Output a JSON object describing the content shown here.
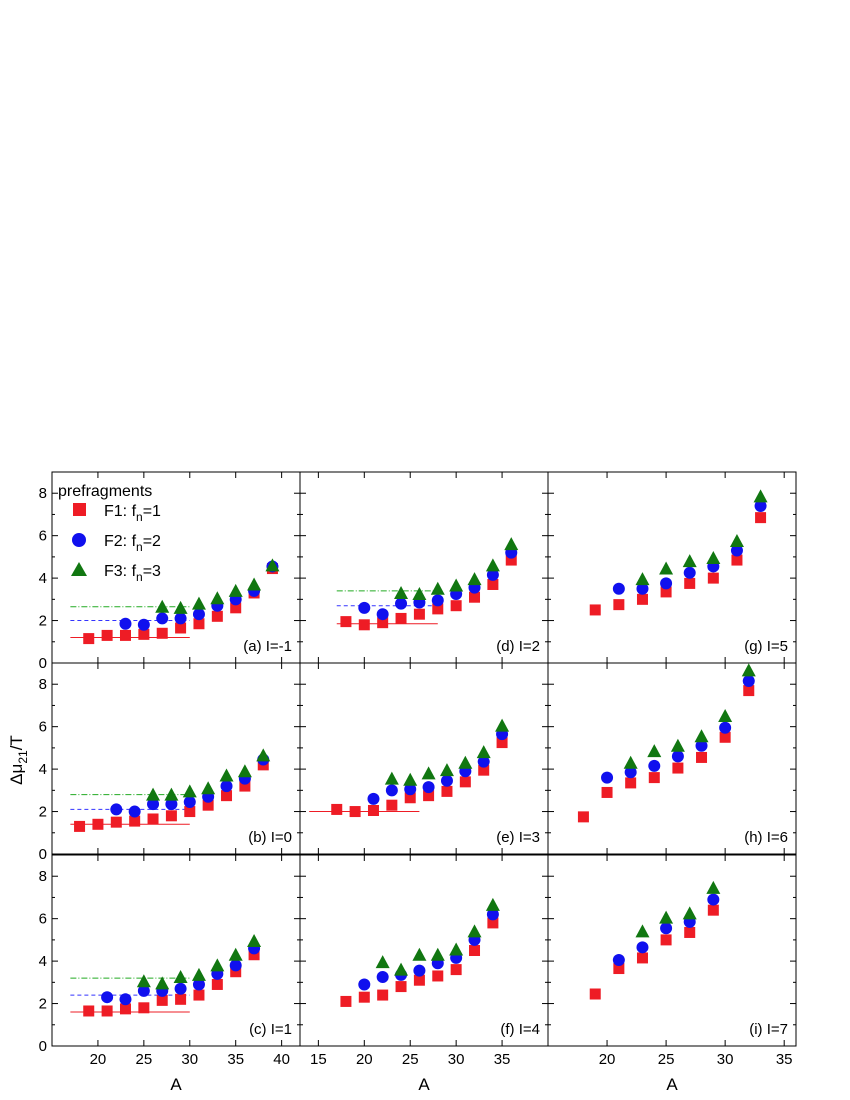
{
  "figure": {
    "ylabel_main": "Δμ",
    "ylabel_sub": "21",
    "ylabel_tail": "/T",
    "xlabel": "A",
    "legend": {
      "title": "prefragments",
      "entries": [
        {
          "prefix": "F1: f",
          "sub": "n",
          "suffix": "=1"
        },
        {
          "prefix": "F2: f",
          "sub": "n",
          "suffix": "=2"
        },
        {
          "prefix": "F3: f",
          "sub": "n",
          "suffix": "=3"
        }
      ]
    },
    "colors": {
      "F1": "#ee1c25",
      "F2": "#1010ee",
      "F3": "#117711",
      "line_F1": "#ee1c25",
      "line_F2": "#3333ff",
      "line_F3": "#22aa22"
    },
    "columns": [
      {
        "xlim": [
          15,
          42
        ],
        "xticks": [
          "20",
          "25",
          "30",
          "35",
          "40"
        ]
      },
      {
        "xlim": [
          13,
          40
        ],
        "xticks": [
          "15",
          "20",
          "25",
          "30",
          "35"
        ]
      },
      {
        "xlim": [
          15,
          36
        ],
        "xticks": [
          "20",
          "25",
          "30",
          "35"
        ]
      }
    ],
    "rows": [
      {
        "ylim": [
          0,
          9
        ],
        "yticks": [
          "0",
          "2",
          "4",
          "6",
          "8"
        ]
      },
      {
        "ylim": [
          0,
          9
        ],
        "yticks": [
          "0",
          "2",
          "4",
          "6",
          "8"
        ]
      },
      {
        "ylim": [
          0,
          9
        ],
        "yticks": [
          "0",
          "2",
          "4",
          "6",
          "8"
        ]
      }
    ]
  },
  "chart_data": [
    {
      "panel": "(a) I=-1",
      "type": "scatter",
      "x": [
        19,
        21,
        23,
        25,
        27,
        29,
        31,
        33,
        35,
        37,
        39
      ],
      "series": [
        {
          "name": "F1: fn=1",
          "x": [
            19,
            21,
            23,
            25,
            27,
            29,
            31,
            33,
            35,
            37,
            39
          ],
          "values": [
            1.15,
            1.3,
            1.3,
            1.35,
            1.4,
            1.65,
            1.85,
            2.2,
            2.6,
            3.3,
            4.45
          ]
        },
        {
          "name": "F2: fn=2",
          "x": [
            23,
            25,
            27,
            29,
            31,
            33,
            35,
            37,
            39
          ],
          "values": [
            1.85,
            1.8,
            2.1,
            2.1,
            2.3,
            2.7,
            3.0,
            3.4,
            4.55
          ]
        },
        {
          "name": "F3: fn=3",
          "x": [
            27,
            29,
            31,
            33,
            35,
            37,
            39
          ],
          "values": [
            2.65,
            2.6,
            2.8,
            3.05,
            3.4,
            3.7,
            4.6
          ]
        }
      ],
      "ref_lines": {
        "F1": {
          "y": 1.2,
          "x": [
            17,
            30
          ]
        },
        "F2": {
          "y": 2.0,
          "x": [
            17,
            30
          ]
        },
        "F3": {
          "y": 2.65,
          "x": [
            17,
            30
          ]
        }
      }
    },
    {
      "panel": "(b) I=0",
      "type": "scatter",
      "series": [
        {
          "name": "F1: fn=1",
          "x": [
            18,
            20,
            22,
            24,
            26,
            28,
            30,
            32,
            34,
            36,
            38
          ],
          "values": [
            1.3,
            1.4,
            1.5,
            1.55,
            1.65,
            1.8,
            2.0,
            2.3,
            2.75,
            3.2,
            4.2
          ]
        },
        {
          "name": "F2: fn=2",
          "x": [
            22,
            24,
            26,
            28,
            30,
            32,
            34,
            36,
            38
          ],
          "values": [
            2.1,
            2.0,
            2.35,
            2.35,
            2.45,
            2.7,
            3.2,
            3.55,
            4.45
          ]
        },
        {
          "name": "F3: fn=3",
          "x": [
            26,
            28,
            30,
            32,
            34,
            36,
            38
          ],
          "values": [
            2.8,
            2.8,
            2.95,
            3.1,
            3.7,
            3.9,
            4.65
          ]
        }
      ],
      "ref_lines": {
        "F1": {
          "y": 1.4,
          "x": [
            17,
            30
          ]
        },
        "F2": {
          "y": 2.1,
          "x": [
            17,
            30
          ]
        },
        "F3": {
          "y": 2.8,
          "x": [
            17,
            30
          ]
        }
      }
    },
    {
      "panel": "(c) I=1",
      "type": "scatter",
      "series": [
        {
          "name": "F1: fn=1",
          "x": [
            19,
            21,
            23,
            25,
            27,
            29,
            31,
            33,
            35,
            37
          ],
          "values": [
            1.65,
            1.65,
            1.75,
            1.8,
            2.15,
            2.2,
            2.4,
            2.9,
            3.5,
            4.3
          ]
        },
        {
          "name": "F2: fn=2",
          "x": [
            21,
            23,
            25,
            27,
            29,
            31,
            33,
            35,
            37
          ],
          "values": [
            2.3,
            2.2,
            2.6,
            2.6,
            2.7,
            2.9,
            3.4,
            3.8,
            4.6
          ]
        },
        {
          "name": "F3: fn=3",
          "x": [
            25,
            27,
            29,
            31,
            33,
            35,
            37
          ],
          "values": [
            3.05,
            2.95,
            3.25,
            3.35,
            3.8,
            4.3,
            4.95
          ]
        }
      ],
      "ref_lines": {
        "F1": {
          "y": 1.6,
          "x": [
            17,
            30
          ]
        },
        "F2": {
          "y": 2.4,
          "x": [
            17,
            30
          ]
        },
        "F3": {
          "y": 3.2,
          "x": [
            17,
            30
          ]
        }
      }
    },
    {
      "panel": "(d) I=2",
      "type": "scatter",
      "series": [
        {
          "name": "F1: fn=1",
          "x": [
            18,
            20,
            22,
            24,
            26,
            28,
            30,
            32,
            34,
            36
          ],
          "values": [
            1.95,
            1.8,
            1.9,
            2.1,
            2.3,
            2.55,
            2.7,
            3.1,
            3.7,
            4.85
          ]
        },
        {
          "name": "F2: fn=2",
          "x": [
            20,
            22,
            24,
            26,
            28,
            30,
            32,
            34,
            36
          ],
          "values": [
            2.6,
            2.3,
            2.8,
            2.85,
            2.95,
            3.25,
            3.55,
            4.15,
            5.2
          ]
        },
        {
          "name": "F3: fn=3",
          "x": [
            24,
            26,
            28,
            30,
            32,
            34,
            36
          ],
          "values": [
            3.3,
            3.25,
            3.5,
            3.65,
            3.95,
            4.6,
            5.6
          ]
        }
      ],
      "ref_lines": {
        "F1": {
          "y": 1.85,
          "x": [
            17,
            28
          ]
        },
        "F2": {
          "y": 2.7,
          "x": [
            17,
            28
          ]
        },
        "F3": {
          "y": 3.4,
          "x": [
            17,
            28
          ]
        }
      }
    },
    {
      "panel": "(e) I=3",
      "type": "scatter",
      "series": [
        {
          "name": "F1: fn=1",
          "x": [
            17,
            19,
            21,
            23,
            25,
            27,
            29,
            31,
            33,
            35
          ],
          "values": [
            2.1,
            2.0,
            2.05,
            2.3,
            2.65,
            2.75,
            2.95,
            3.4,
            3.95,
            5.25
          ]
        },
        {
          "name": "F2: fn=2",
          "x": [
            21,
            23,
            25,
            27,
            29,
            31,
            33,
            35
          ],
          "values": [
            2.6,
            3.0,
            3.05,
            3.15,
            3.45,
            3.9,
            4.35,
            5.65
          ]
        },
        {
          "name": "F3: fn=3",
          "x": [
            23,
            25,
            27,
            29,
            31,
            33,
            35
          ],
          "values": [
            3.55,
            3.5,
            3.8,
            3.95,
            4.3,
            4.8,
            6.05
          ]
        }
      ],
      "ref_lines": {
        "F1": {
          "y": 2.0,
          "x": [
            14,
            26
          ]
        }
      }
    },
    {
      "panel": "(f) I=4",
      "type": "scatter",
      "series": [
        {
          "name": "F1: fn=1",
          "x": [
            18,
            20,
            22,
            24,
            26,
            28,
            30,
            32,
            34
          ],
          "values": [
            2.1,
            2.3,
            2.4,
            2.8,
            3.1,
            3.3,
            3.6,
            4.5,
            5.8
          ]
        },
        {
          "name": "F2: fn=2",
          "x": [
            20,
            22,
            24,
            26,
            28,
            30,
            32,
            34
          ],
          "values": [
            2.9,
            3.25,
            3.35,
            3.55,
            3.9,
            4.15,
            5.0,
            6.2
          ]
        },
        {
          "name": "F3: fn=3",
          "x": [
            22,
            24,
            26,
            28,
            30,
            32,
            34
          ],
          "values": [
            3.95,
            3.6,
            4.3,
            4.3,
            4.55,
            5.4,
            6.65
          ]
        }
      ]
    },
    {
      "panel": "(g) I=5",
      "type": "scatter",
      "series": [
        {
          "name": "F1: fn=1",
          "x": [
            19,
            21,
            23,
            25,
            27,
            29,
            31,
            33
          ],
          "values": [
            2.5,
            2.75,
            3.0,
            3.35,
            3.75,
            4.0,
            4.85,
            6.85
          ]
        },
        {
          "name": "F2: fn=2",
          "x": [
            21,
            23,
            25,
            27,
            29,
            31,
            33
          ],
          "values": [
            3.5,
            3.5,
            3.75,
            4.25,
            4.55,
            5.3,
            7.4
          ]
        },
        {
          "name": "F3: fn=3",
          "x": [
            23,
            25,
            27,
            29,
            31,
            33
          ],
          "values": [
            3.95,
            4.45,
            4.8,
            4.95,
            5.75,
            7.85
          ]
        }
      ]
    },
    {
      "panel": "(h) I=6",
      "type": "scatter",
      "series": [
        {
          "name": "F1: fn=1",
          "x": [
            18,
            20,
            22,
            24,
            26,
            28,
            30,
            32
          ],
          "values": [
            1.75,
            2.9,
            3.35,
            3.6,
            4.05,
            4.55,
            5.5,
            7.7
          ]
        },
        {
          "name": "F2: fn=2",
          "x": [
            20,
            22,
            24,
            26,
            28,
            30,
            32
          ],
          "values": [
            3.6,
            3.85,
            4.15,
            4.6,
            5.1,
            5.95,
            8.15
          ]
        },
        {
          "name": "F3: fn=3",
          "x": [
            22,
            24,
            26,
            28,
            30,
            32
          ],
          "values": [
            4.3,
            4.85,
            5.1,
            5.55,
            6.5,
            8.65
          ]
        }
      ]
    },
    {
      "panel": "(i) I=7",
      "type": "scatter",
      "series": [
        {
          "name": "F1: fn=1",
          "x": [
            19,
            21,
            23,
            25,
            27,
            29
          ],
          "values": [
            2.45,
            3.65,
            4.15,
            5.0,
            5.35,
            6.4
          ]
        },
        {
          "name": "F2: fn=2",
          "x": [
            21,
            23,
            25,
            27,
            29
          ],
          "values": [
            4.05,
            4.65,
            5.55,
            5.85,
            6.9
          ]
        },
        {
          "name": "F3: fn=3",
          "x": [
            23,
            25,
            27,
            29
          ],
          "values": [
            5.4,
            6.05,
            6.25,
            7.45
          ]
        }
      ]
    }
  ]
}
